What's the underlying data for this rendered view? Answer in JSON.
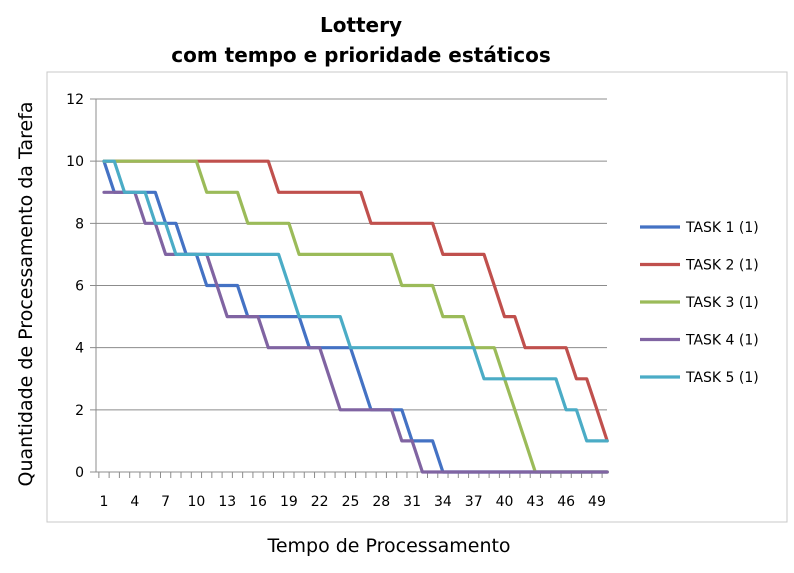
{
  "chart_data": {
    "type": "line",
    "title": "Lottery",
    "subtitle": "com tempo e prioridade estáticos",
    "xlabel": "Tempo de Processamento",
    "ylabel": "Quantidade de Processamento da Tarefa",
    "xlim": [
      1,
      50
    ],
    "ylim": [
      0,
      12
    ],
    "yticks": [
      "0",
      "2",
      "4",
      "6",
      "8",
      "10",
      "12"
    ],
    "xticks": [
      "1",
      "4",
      "7",
      "10",
      "13",
      "16",
      "19",
      "22",
      "25",
      "28",
      "31",
      "34",
      "37",
      "40",
      "43",
      "46",
      "49"
    ],
    "grid": true,
    "legend_position": "right",
    "x": [
      1,
      2,
      3,
      4,
      5,
      6,
      7,
      8,
      9,
      10,
      11,
      12,
      13,
      14,
      15,
      16,
      17,
      18,
      19,
      20,
      21,
      22,
      23,
      24,
      25,
      26,
      27,
      28,
      29,
      30,
      31,
      32,
      33,
      34,
      35,
      36,
      37,
      38,
      39,
      40,
      41,
      42,
      43,
      44,
      45,
      46,
      47,
      48,
      49,
      50
    ],
    "series": [
      {
        "name": "TASK 1 (1)",
        "color": "#4472C4",
        "values": [
          10,
          9,
          9,
          9,
          9,
          9,
          8,
          8,
          7,
          7,
          6,
          6,
          6,
          6,
          5,
          5,
          5,
          5,
          5,
          5,
          4,
          4,
          4,
          4,
          4,
          3,
          2,
          2,
          2,
          2,
          1,
          1,
          1,
          0,
          0,
          0,
          0,
          0,
          0,
          0,
          0,
          0,
          0,
          0,
          0,
          0,
          0,
          0,
          0,
          0
        ]
      },
      {
        "name": "TASK 2 (1)",
        "color": "#C0504D",
        "values": [
          10,
          10,
          10,
          10,
          10,
          10,
          10,
          10,
          10,
          10,
          10,
          10,
          10,
          10,
          10,
          10,
          10,
          9,
          9,
          9,
          9,
          9,
          9,
          9,
          9,
          9,
          8,
          8,
          8,
          8,
          8,
          8,
          8,
          7,
          7,
          7,
          7,
          7,
          6,
          5,
          5,
          4,
          4,
          4,
          4,
          4,
          3,
          3,
          2,
          1
        ]
      },
      {
        "name": "TASK 3 (1)",
        "color": "#9BBB59",
        "values": [
          10,
          10,
          10,
          10,
          10,
          10,
          10,
          10,
          10,
          10,
          9,
          9,
          9,
          9,
          8,
          8,
          8,
          8,
          8,
          7,
          7,
          7,
          7,
          7,
          7,
          7,
          7,
          7,
          7,
          6,
          6,
          6,
          6,
          5,
          5,
          5,
          4,
          4,
          4,
          3,
          2,
          1,
          0,
          0,
          0,
          0,
          0,
          0,
          0,
          0
        ]
      },
      {
        "name": "TASK 4 (1)",
        "color": "#8064A2",
        "values": [
          9,
          9,
          9,
          9,
          8,
          8,
          7,
          7,
          7,
          7,
          7,
          6,
          5,
          5,
          5,
          5,
          4,
          4,
          4,
          4,
          4,
          4,
          3,
          2,
          2,
          2,
          2,
          2,
          2,
          1,
          1,
          0,
          0,
          0,
          0,
          0,
          0,
          0,
          0,
          0,
          0,
          0,
          0,
          0,
          0,
          0,
          0,
          0,
          0,
          0
        ]
      },
      {
        "name": "TASK 5 (1)",
        "color": "#4BACC6",
        "values": [
          10,
          10,
          9,
          9,
          9,
          8,
          8,
          7,
          7,
          7,
          7,
          7,
          7,
          7,
          7,
          7,
          7,
          7,
          6,
          5,
          5,
          5,
          5,
          5,
          4,
          4,
          4,
          4,
          4,
          4,
          4,
          4,
          4,
          4,
          4,
          4,
          4,
          3,
          3,
          3,
          3,
          3,
          3,
          3,
          3,
          2,
          2,
          1,
          1,
          1
        ]
      }
    ]
  }
}
